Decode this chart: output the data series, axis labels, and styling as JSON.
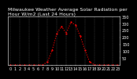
{
  "title": "Milwaukee Weather Average Solar Radiation per Hour W/m2 (Last 24 Hours)",
  "hours": [
    0,
    1,
    2,
    3,
    4,
    5,
    6,
    7,
    8,
    9,
    10,
    11,
    12,
    13,
    14,
    15,
    16,
    17,
    18,
    19,
    20,
    21,
    22,
    23
  ],
  "values": [
    0,
    0,
    0,
    0,
    0,
    0,
    0,
    2,
    25,
    110,
    230,
    280,
    230,
    310,
    290,
    210,
    110,
    25,
    2,
    0,
    0,
    0,
    0,
    0
  ],
  "line_color": "#ff0000",
  "bg_color": "#000000",
  "plot_bg": "#000000",
  "grid_color": "#666666",
  "text_color": "#ffffff",
  "ylim": [
    0,
    350
  ],
  "ytick_values": [
    50,
    100,
    150,
    200,
    250,
    300,
    350
  ],
  "title_fontsize": 4.5,
  "tick_fontsize": 3.5
}
